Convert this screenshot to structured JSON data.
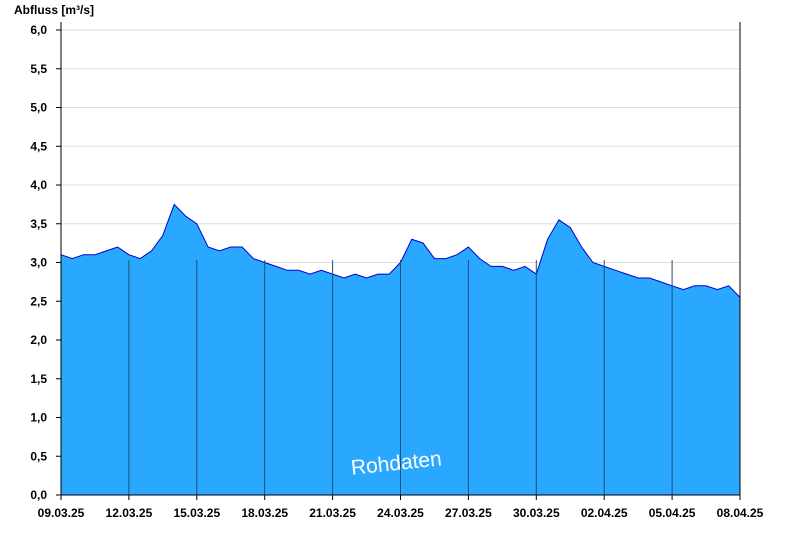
{
  "chart_data": {
    "type": "area",
    "ylabel": "Abfluss [m³/s]",
    "ylim": [
      0,
      6.0
    ],
    "y_ticks": [
      "0,0",
      "0,5",
      "1,0",
      "1,5",
      "2,0",
      "2,5",
      "3,0",
      "3,5",
      "4,0",
      "4,5",
      "5,0",
      "5,5",
      "6,0"
    ],
    "x_start": "09.03.25",
    "x_end": "08.04.25",
    "x_ticks": [
      "09.03.25",
      "12.03.25",
      "15.03.25",
      "18.03.25",
      "21.03.25",
      "24.03.25",
      "27.03.25",
      "30.03.25",
      "02.04.25",
      "05.04.25",
      "08.04.25"
    ],
    "grid": true,
    "watermark": "Rohdaten",
    "colors": {
      "fill": "#2aa7ff",
      "line": "#0000cc",
      "grid": "#dddddd",
      "day_lines": "#1f4f7a"
    },
    "series": [
      {
        "x": [
          "09.03.25",
          "09.03.25 12:00",
          "10.03.25",
          "10.03.25 12:00",
          "11.03.25",
          "11.03.25 12:00",
          "12.03.25",
          "12.03.25 12:00",
          "13.03.25",
          "13.03.25 12:00",
          "14.03.25",
          "14.03.25 12:00",
          "15.03.25",
          "15.03.25 12:00",
          "16.03.25",
          "16.03.25 12:00",
          "17.03.25",
          "17.03.25 12:00",
          "18.03.25",
          "18.03.25 12:00",
          "19.03.25",
          "19.03.25 12:00",
          "20.03.25",
          "20.03.25 12:00",
          "21.03.25",
          "21.03.25 12:00",
          "22.03.25",
          "22.03.25 12:00",
          "23.03.25",
          "23.03.25 12:00",
          "24.03.25",
          "24.03.25 12:00",
          "25.03.25",
          "25.03.25 12:00",
          "26.03.25",
          "26.03.25 12:00",
          "27.03.25",
          "27.03.25 12:00",
          "28.03.25",
          "28.03.25 12:00",
          "29.03.25",
          "29.03.25 12:00",
          "30.03.25",
          "30.03.25 12:00",
          "31.03.25",
          "31.03.25 12:00",
          "01.04.25",
          "01.04.25 12:00",
          "02.04.25",
          "02.04.25 12:00",
          "03.04.25",
          "03.04.25 12:00",
          "04.04.25",
          "04.04.25 12:00",
          "05.04.25",
          "05.04.25 12:00",
          "06.04.25",
          "06.04.25 12:00",
          "07.04.25",
          "07.04.25 12:00",
          "08.04.25"
        ],
        "values": [
          3.1,
          3.05,
          3.1,
          3.1,
          3.15,
          3.2,
          3.1,
          3.05,
          3.15,
          3.35,
          3.75,
          3.6,
          3.5,
          3.2,
          3.15,
          3.2,
          3.2,
          3.05,
          3.0,
          2.95,
          2.9,
          2.9,
          2.85,
          2.9,
          2.85,
          2.8,
          2.85,
          2.8,
          2.85,
          2.85,
          3.0,
          3.3,
          3.25,
          3.05,
          3.05,
          3.1,
          3.2,
          3.05,
          2.95,
          2.95,
          2.9,
          2.95,
          2.85,
          3.3,
          3.55,
          3.45,
          3.2,
          3.0,
          2.95,
          2.9,
          2.85,
          2.8,
          2.8,
          2.75,
          2.7,
          2.65,
          2.7,
          2.7,
          2.65,
          2.7,
          2.55
        ]
      }
    ]
  }
}
